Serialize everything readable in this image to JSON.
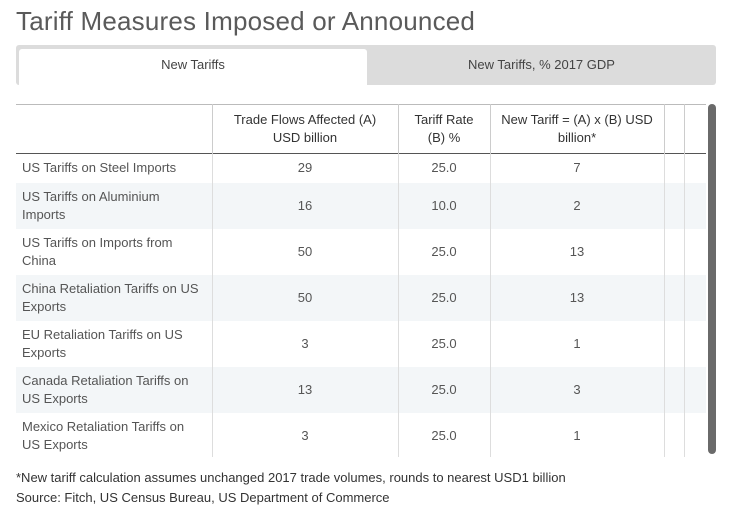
{
  "title": "Tariff Measures Imposed or Announced",
  "tabs": [
    {
      "label": "New Tariffs",
      "active": true
    },
    {
      "label": "New Tariffs, % 2017 GDP",
      "active": false
    }
  ],
  "table": {
    "headers": [
      "",
      "Trade Flows Affected (A) USD billion",
      "Tariff Rate (B) %",
      "New Tariff = (A) x (B) USD billion*",
      ""
    ],
    "rows": [
      {
        "label": "US Tariffs on Steel Imports",
        "trade": "29",
        "rate": "25.0",
        "new": "7"
      },
      {
        "label": "US Tariffs on Aluminium Imports",
        "trade": "16",
        "rate": "10.0",
        "new": "2"
      },
      {
        "label": "US Tariffs on Imports from China",
        "trade": "50",
        "rate": "25.0",
        "new": "13"
      },
      {
        "label": "China Retaliation Tariffs on US Exports",
        "trade": "50",
        "rate": "25.0",
        "new": "13"
      },
      {
        "label": "EU Retaliation Tariffs on US Exports",
        "trade": "3",
        "rate": "25.0",
        "new": "1"
      },
      {
        "label": "Canada Retaliation Tariffs on US Exports",
        "trade": "13",
        "rate": "25.0",
        "new": "3"
      },
      {
        "label": "Mexico Retaliation Tariffs on US Exports",
        "trade": "3",
        "rate": "25.0",
        "new": "1"
      }
    ]
  },
  "footnote": "*New tariff calculation assumes unchanged 2017 trade volumes, rounds to nearest USD1 billion",
  "source": "Source: Fitch,  US Census Bureau, US Department of Commerce"
}
